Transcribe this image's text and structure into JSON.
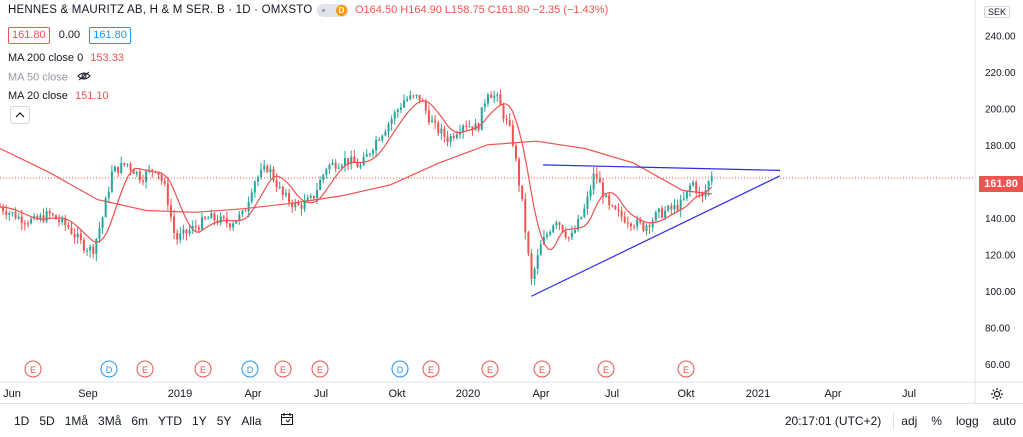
{
  "symbol": {
    "title": "HENNES & MAURITZ AB, H & M SER. B · 1D · OMXSTO",
    "open": "O164.50",
    "high": "H164.90",
    "low": "L158.75",
    "close": "C161.80",
    "change": "−2.35 (−1.43%)",
    "bid": "161.80",
    "spread": "0.00",
    "ask": "161.80",
    "currency": "SEK",
    "last_price": "161.80"
  },
  "indicators": [
    {
      "label": "MA 200 close 0",
      "value": "153.33",
      "visible": true
    },
    {
      "label": "MA 50 close",
      "value": "",
      "visible": false
    },
    {
      "label": "MA 20 close",
      "value": "151.10",
      "visible": true
    }
  ],
  "colors": {
    "up": "#26a69a",
    "down": "#ef5350",
    "ma": "#ef5350",
    "trend": "#2a2ee8",
    "accent": "#2196f3"
  },
  "time_axis": [
    "Jun",
    "Sep",
    "2019",
    "Apr",
    "Jul",
    "Okt",
    "2020",
    "Apr",
    "Jul",
    "Okt",
    "2021",
    "Apr",
    "Jul"
  ],
  "events": [
    "E",
    "D",
    "E",
    "E",
    "D",
    "E",
    "E",
    "D",
    "E",
    "E",
    "E",
    "E",
    "E"
  ],
  "bottom": {
    "ranges": [
      "1D",
      "5D",
      "1Må",
      "3Må",
      "6m",
      "YTD",
      "1Y",
      "5Y",
      "Alla"
    ],
    "time": "20:17:01 (UTC+2)",
    "opts": [
      "adj",
      "%",
      "logg",
      "auto"
    ]
  },
  "chart_data": {
    "type": "candlestick",
    "title": "HENNES & MAURITZ AB, H & M SER. B · 1D · OMXSTO",
    "ylim": [
      50,
      255
    ],
    "yticks": [
      60,
      80,
      100,
      120,
      140,
      160,
      180,
      200,
      220,
      240
    ],
    "xlabels": [
      "Jun",
      "Sep",
      "2019",
      "Apr",
      "Jul",
      "Okt",
      "2020",
      "Apr",
      "Jul",
      "Okt",
      "2021",
      "Apr",
      "Jul"
    ],
    "price_path": [
      {
        "t": 0,
        "v": 146
      },
      {
        "t": 0.02,
        "v": 140
      },
      {
        "t": 0.035,
        "v": 138
      },
      {
        "t": 0.05,
        "v": 142
      },
      {
        "t": 0.07,
        "v": 135
      },
      {
        "t": 0.085,
        "v": 125
      },
      {
        "t": 0.095,
        "v": 122
      },
      {
        "t": 0.105,
        "v": 140
      },
      {
        "t": 0.115,
        "v": 165
      },
      {
        "t": 0.13,
        "v": 170
      },
      {
        "t": 0.145,
        "v": 162
      },
      {
        "t": 0.16,
        "v": 168
      },
      {
        "t": 0.17,
        "v": 155
      },
      {
        "t": 0.18,
        "v": 128
      },
      {
        "t": 0.195,
        "v": 133
      },
      {
        "t": 0.215,
        "v": 140
      },
      {
        "t": 0.235,
        "v": 137
      },
      {
        "t": 0.25,
        "v": 142
      },
      {
        "t": 0.26,
        "v": 160
      },
      {
        "t": 0.275,
        "v": 168
      },
      {
        "t": 0.29,
        "v": 152
      },
      {
        "t": 0.305,
        "v": 146
      },
      {
        "t": 0.32,
        "v": 150
      },
      {
        "t": 0.335,
        "v": 168
      },
      {
        "t": 0.355,
        "v": 172
      },
      {
        "t": 0.37,
        "v": 168
      },
      {
        "t": 0.385,
        "v": 182
      },
      {
        "t": 0.4,
        "v": 193
      },
      {
        "t": 0.415,
        "v": 205
      },
      {
        "t": 0.43,
        "v": 206
      },
      {
        "t": 0.445,
        "v": 190
      },
      {
        "t": 0.46,
        "v": 183
      },
      {
        "t": 0.475,
        "v": 192
      },
      {
        "t": 0.49,
        "v": 189
      },
      {
        "t": 0.5,
        "v": 210
      },
      {
        "t": 0.51,
        "v": 205
      },
      {
        "t": 0.525,
        "v": 185
      },
      {
        "t": 0.535,
        "v": 150
      },
      {
        "t": 0.545,
        "v": 105
      },
      {
        "t": 0.555,
        "v": 125
      },
      {
        "t": 0.57,
        "v": 140
      },
      {
        "t": 0.585,
        "v": 128
      },
      {
        "t": 0.6,
        "v": 145
      },
      {
        "t": 0.61,
        "v": 165
      },
      {
        "t": 0.625,
        "v": 145
      },
      {
        "t": 0.64,
        "v": 140
      },
      {
        "t": 0.66,
        "v": 135
      },
      {
        "t": 0.675,
        "v": 142
      },
      {
        "t": 0.69,
        "v": 145
      },
      {
        "t": 0.7,
        "v": 148
      },
      {
        "t": 0.71,
        "v": 160
      },
      {
        "t": 0.72,
        "v": 150
      },
      {
        "t": 0.73,
        "v": 164
      }
    ],
    "ma200": [
      {
        "t": 0,
        "v": 178
      },
      {
        "t": 0.05,
        "v": 165
      },
      {
        "t": 0.1,
        "v": 150
      },
      {
        "t": 0.15,
        "v": 144
      },
      {
        "t": 0.2,
        "v": 143
      },
      {
        "t": 0.25,
        "v": 145
      },
      {
        "t": 0.3,
        "v": 148
      },
      {
        "t": 0.35,
        "v": 152
      },
      {
        "t": 0.4,
        "v": 158
      },
      {
        "t": 0.45,
        "v": 170
      },
      {
        "t": 0.5,
        "v": 180
      },
      {
        "t": 0.55,
        "v": 182
      },
      {
        "t": 0.6,
        "v": 178
      },
      {
        "t": 0.65,
        "v": 170
      },
      {
        "t": 0.7,
        "v": 155
      },
      {
        "t": 0.73,
        "v": 153
      }
    ],
    "trendlines": [
      {
        "t0": 0.557,
        "v0": 169,
        "t1": 0.8,
        "v1": 166
      },
      {
        "t0": 0.545,
        "v0": 97,
        "t1": 0.8,
        "v1": 163
      }
    ]
  }
}
